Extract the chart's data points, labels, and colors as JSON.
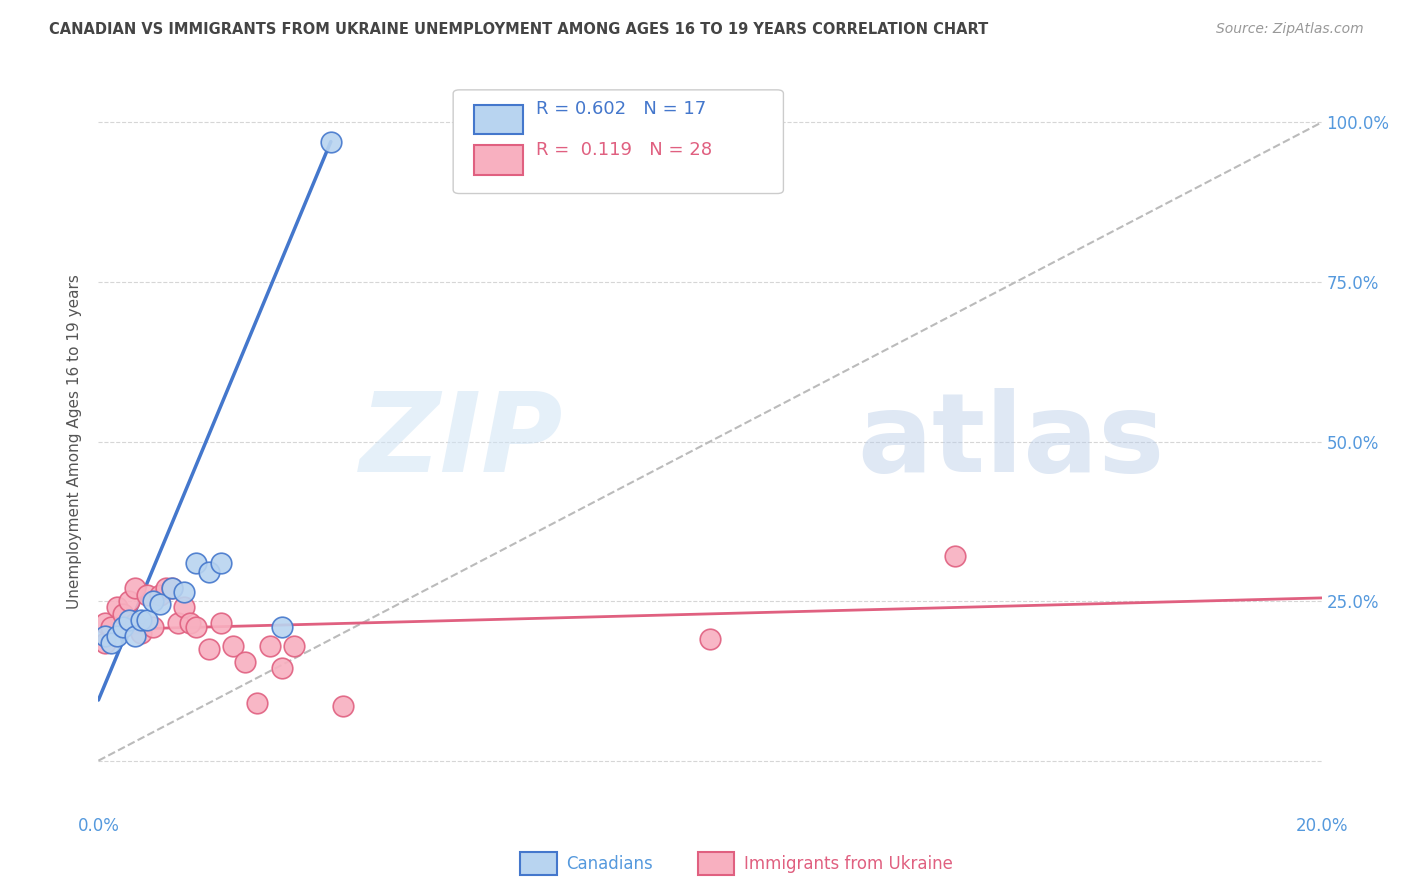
{
  "title": "CANADIAN VS IMMIGRANTS FROM UKRAINE UNEMPLOYMENT AMONG AGES 16 TO 19 YEARS CORRELATION CHART",
  "source": "Source: ZipAtlas.com",
  "ylabel": "Unemployment Among Ages 16 to 19 years",
  "watermark_zip": "ZIP",
  "watermark_atlas": "atlas",
  "xlim": [
    0.0,
    0.2
  ],
  "ylim": [
    -0.08,
    1.08
  ],
  "yticks": [
    0.0,
    0.25,
    0.5,
    0.75,
    1.0
  ],
  "ytick_labels": [
    "",
    "25.0%",
    "50.0%",
    "75.0%",
    "100.0%"
  ],
  "xticks": [
    0.0,
    0.02,
    0.04,
    0.06,
    0.08,
    0.1,
    0.12,
    0.14,
    0.16,
    0.18,
    0.2
  ],
  "xtick_labels_show": [
    "0.0%",
    "20.0%"
  ],
  "legend_r_canadian": "0.602",
  "legend_n_canadian": "17",
  "legend_r_ukraine": "0.119",
  "legend_n_ukraine": "28",
  "canadian_color": "#b8d4f0",
  "ukraine_color": "#f8b0c0",
  "canadian_line_color": "#4477cc",
  "ukraine_line_color": "#e06080",
  "ref_line_color": "#bbbbbb",
  "background_color": "#ffffff",
  "grid_color": "#cccccc",
  "title_color": "#444444",
  "axis_label_color": "#5599dd",
  "canadians_x": [
    0.001,
    0.002,
    0.003,
    0.004,
    0.005,
    0.006,
    0.007,
    0.008,
    0.009,
    0.01,
    0.012,
    0.014,
    0.016,
    0.018,
    0.02,
    0.03,
    0.038
  ],
  "canadians_y": [
    0.195,
    0.185,
    0.195,
    0.21,
    0.22,
    0.195,
    0.22,
    0.22,
    0.25,
    0.245,
    0.27,
    0.265,
    0.31,
    0.295,
    0.31,
    0.21,
    0.97
  ],
  "ukraine_x": [
    0.001,
    0.001,
    0.002,
    0.003,
    0.004,
    0.005,
    0.006,
    0.006,
    0.007,
    0.008,
    0.009,
    0.01,
    0.011,
    0.012,
    0.013,
    0.014,
    0.015,
    0.016,
    0.018,
    0.02,
    0.022,
    0.024,
    0.026,
    0.028,
    0.03,
    0.032,
    0.04,
    0.1
  ],
  "ukraine_y": [
    0.215,
    0.185,
    0.21,
    0.24,
    0.23,
    0.25,
    0.215,
    0.27,
    0.2,
    0.26,
    0.21,
    0.26,
    0.27,
    0.27,
    0.215,
    0.24,
    0.215,
    0.21,
    0.175,
    0.215,
    0.18,
    0.155,
    0.09,
    0.18,
    0.145,
    0.18,
    0.085,
    0.19
  ],
  "ukraine_outlier_x": [
    0.14
  ],
  "ukraine_outlier_y": [
    0.32
  ],
  "canadian_trend_x": [
    0.0,
    0.038
  ],
  "canadian_trend_y": [
    0.095,
    0.97
  ],
  "ukraine_trend_x": [
    0.0,
    0.2
  ],
  "ukraine_trend_y": [
    0.205,
    0.255
  ],
  "ref_line_x": [
    0.0,
    0.2
  ],
  "ref_line_y": [
    0.0,
    1.0
  ]
}
